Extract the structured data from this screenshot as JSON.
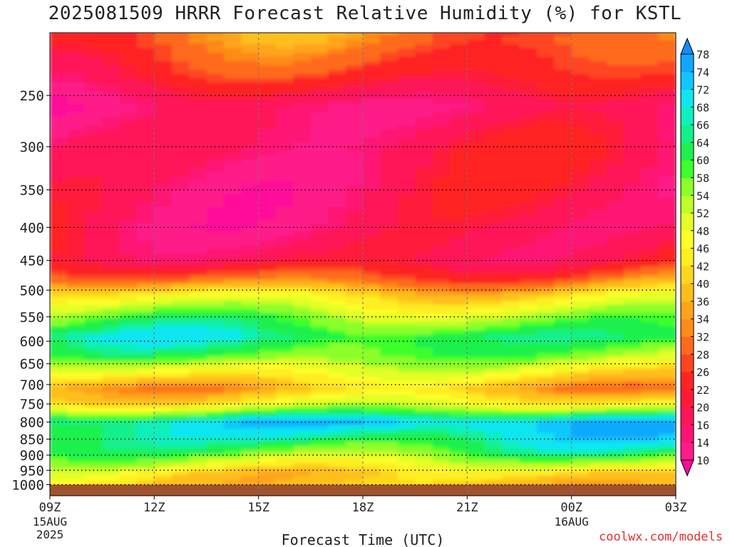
{
  "chart_data": {
    "type": "heatmap",
    "title": "2025081509 HRRR Forecast Relative Humidity (%) for KSTL",
    "xlabel": "Forecast Time (UTC)",
    "ylabel": "",
    "x_ticks": [
      {
        "label": "09Z",
        "sub": "15AUG",
        "sub2": "2025",
        "hour": 0
      },
      {
        "label": "12Z",
        "sub": "",
        "sub2": "",
        "hour": 3
      },
      {
        "label": "15Z",
        "sub": "",
        "sub2": "",
        "hour": 6
      },
      {
        "label": "18Z",
        "sub": "",
        "sub2": "",
        "hour": 9
      },
      {
        "label": "21Z",
        "sub": "",
        "sub2": "",
        "hour": 12
      },
      {
        "label": "00Z",
        "sub": "16AUG",
        "sub2": "",
        "hour": 15
      },
      {
        "label": "03Z",
        "sub": "",
        "sub2": "",
        "hour": 18
      }
    ],
    "xlim": [
      0,
      18
    ],
    "y_ticks": [
      250,
      300,
      350,
      400,
      450,
      500,
      550,
      600,
      650,
      700,
      750,
      800,
      850,
      900,
      950,
      1000
    ],
    "ylim": [
      200,
      1040
    ],
    "y_scale": "log-pressure",
    "ground_level": 1000,
    "colorbar": {
      "levels": [
        10,
        14,
        16,
        20,
        22,
        26,
        28,
        32,
        34,
        36,
        40,
        42,
        46,
        48,
        52,
        54,
        58,
        60,
        64,
        66,
        68,
        72,
        74,
        78
      ],
      "colors": [
        "#ff0a9a",
        "#ff1c88",
        "#ff1475",
        "#ff1458",
        "#ff1a3a",
        "#ff2424",
        "#ff4420",
        "#ff6a1a",
        "#ff8a18",
        "#ffa41a",
        "#ffbe1c",
        "#ffd61e",
        "#ffee20",
        "#ffff2a",
        "#e4ff28",
        "#beff28",
        "#8aff2c",
        "#3cff2c",
        "#1ef04e",
        "#14f08a",
        "#10f0bc",
        "#10e6f0",
        "#10c8ff",
        "#10a8ff",
        "#148cff"
      ],
      "unit": "%"
    },
    "rh_profile": [
      {
        "p": 205,
        "rh": 30
      },
      {
        "p": 230,
        "rh": 24
      },
      {
        "p": 260,
        "rh": 14
      },
      {
        "p": 300,
        "rh": 18
      },
      {
        "p": 340,
        "rh": 17
      },
      {
        "p": 400,
        "rh": 17
      },
      {
        "p": 450,
        "rh": 20
      },
      {
        "p": 480,
        "rh": 30
      },
      {
        "p": 510,
        "rh": 44
      },
      {
        "p": 550,
        "rh": 56
      },
      {
        "p": 590,
        "rh": 64
      },
      {
        "p": 630,
        "rh": 58
      },
      {
        "p": 670,
        "rh": 46
      },
      {
        "p": 710,
        "rh": 36
      },
      {
        "p": 750,
        "rh": 46
      },
      {
        "p": 780,
        "rh": 62
      },
      {
        "p": 800,
        "rh": 72
      },
      {
        "p": 850,
        "rh": 66
      },
      {
        "p": 890,
        "rh": 60
      },
      {
        "p": 930,
        "rh": 50
      },
      {
        "p": 960,
        "rh": 42
      },
      {
        "p": 990,
        "rh": 40
      }
    ],
    "grid": true
  },
  "credit": "coolwx.com/models"
}
